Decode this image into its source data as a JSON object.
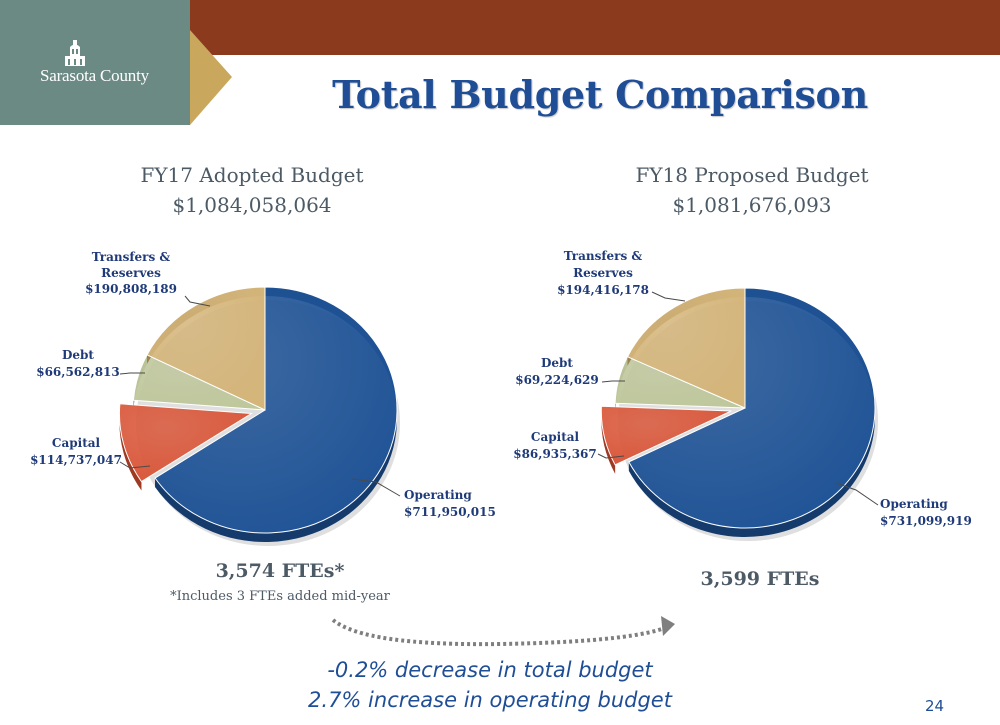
{
  "header": {
    "logo_text": "Sarasota County",
    "title": "Total Budget Comparison"
  },
  "colors": {
    "operating": "#1f5396",
    "capital": "#d9573a",
    "debt": "#bfc79c",
    "transfers": "#d4b57a",
    "label": "#1f3a78",
    "heading": "#4c5a66",
    "title": "#1f4e96"
  },
  "chart_data": [
    {
      "type": "pie",
      "title": "FY17 Adopted Budget",
      "total": "$1,084,058,064",
      "categories": [
        "Operating",
        "Capital",
        "Debt",
        "Transfers & Reserves"
      ],
      "values": [
        711950015,
        114737047,
        66562813,
        190808189
      ],
      "labels": [
        "$711,950,015",
        "$114,737,047",
        "$66,562,813",
        "$190,808,189"
      ],
      "exploded": "Capital",
      "fte": "3,574 FTEs*",
      "note": "*Includes 3 FTEs added mid-year"
    },
    {
      "type": "pie",
      "title": "FY18 Proposed Budget",
      "total": "$1,081,676,093",
      "categories": [
        "Operating",
        "Capital",
        "Debt",
        "Transfers & Reserves"
      ],
      "values": [
        731099919,
        86935367,
        69224629,
        194416178
      ],
      "labels": [
        "$731,099,919",
        "$86,935,367",
        "$69,224,629",
        "$194,416,178"
      ],
      "exploded": "Capital",
      "fte": "3,599 FTEs"
    }
  ],
  "summary": {
    "line1": "-0.2% decrease in total budget",
    "line2": "2.7% increase in operating budget"
  },
  "page_number": "24"
}
